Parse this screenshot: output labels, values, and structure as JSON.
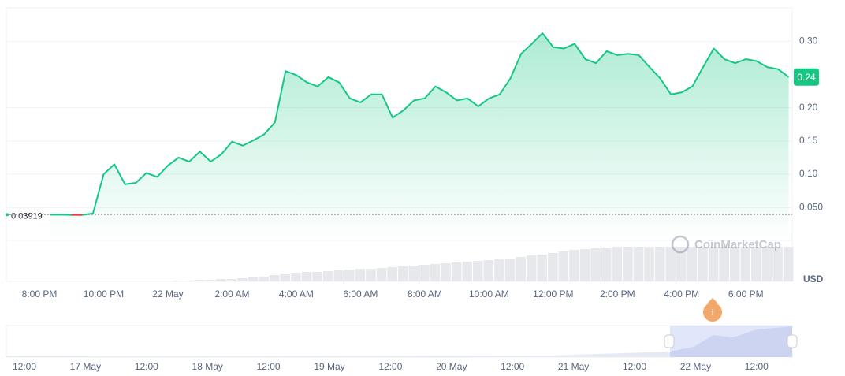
{
  "chart_data": {
    "type": "line",
    "categories": [
      "8:00 PM",
      null,
      null,
      null,
      null,
      null,
      "10:00 PM",
      null,
      null,
      null,
      null,
      null,
      "22 May",
      null,
      null,
      null,
      null,
      null,
      "2:00 AM",
      null,
      null,
      null,
      null,
      null,
      "4:00 AM",
      null,
      null,
      null,
      null,
      null,
      "6:00 AM",
      null,
      null,
      null,
      null,
      null,
      "8:00 AM",
      null,
      null,
      null,
      null,
      null,
      "10:00 AM",
      null,
      null,
      null,
      null,
      null,
      "12:00 PM",
      null,
      null,
      null,
      null,
      null,
      "2:00 PM",
      null,
      null,
      null,
      null,
      null,
      "4:00 PM",
      null,
      null,
      null,
      null,
      null,
      "6:00 PM",
      null,
      null,
      null,
      null
    ],
    "series": [
      {
        "color": "#16c784",
        "down_color": "#ea3943",
        "values": [
          null,
          0.0392,
          0.0392,
          0.039,
          0.039,
          0.041,
          0.1,
          0.115,
          0.085,
          0.087,
          0.102,
          0.096,
          0.113,
          0.125,
          0.119,
          0.134,
          0.119,
          0.13,
          0.149,
          0.143,
          0.151,
          0.16,
          0.178,
          0.255,
          0.249,
          0.238,
          0.232,
          0.246,
          0.238,
          0.214,
          0.208,
          0.22,
          0.22,
          0.185,
          0.196,
          0.211,
          0.214,
          0.232,
          0.223,
          0.211,
          0.214,
          0.202,
          0.214,
          0.22,
          0.244,
          0.281,
          0.296,
          0.312,
          0.291,
          0.289,
          0.296,
          0.273,
          0.267,
          0.285,
          0.279,
          0.281,
          0.279,
          0.261,
          0.244,
          0.22,
          0.223,
          0.232,
          0.261,
          0.289,
          0.273,
          0.267,
          0.273,
          0.27,
          0.261,
          0.258,
          0.246
        ]
      }
    ],
    "volume": [
      0,
      0,
      0,
      0,
      0,
      0,
      0,
      0,
      0,
      0,
      0,
      0,
      0,
      1,
      1,
      2,
      2,
      3,
      3,
      4,
      5,
      6,
      8,
      10,
      11,
      12,
      12,
      13,
      14,
      15,
      16,
      16,
      17,
      18,
      19,
      20,
      21,
      22,
      23,
      24,
      25,
      26,
      27,
      28,
      29,
      31,
      33,
      34,
      36,
      38,
      40,
      41,
      42,
      43,
      44,
      44,
      44,
      44,
      44,
      44,
      44,
      44,
      44,
      44,
      44,
      44,
      44,
      44,
      44,
      44,
      44
    ],
    "ylim": [
      0,
      0.35
    ],
    "yticks": [
      {
        "value": 0.05,
        "label": "0.050"
      },
      {
        "value": 0.1,
        "label": "0.10"
      },
      {
        "value": 0.15,
        "label": "0.15"
      },
      {
        "value": 0.2,
        "label": "0.20"
      },
      {
        "value": 0.3,
        "label": "0.30"
      }
    ],
    "grid": true,
    "baseline": 0.03919,
    "current_price": "0.24",
    "currency": "USD",
    "watermark": "CoinMarketCap",
    "marker": "i",
    "navigator": {
      "labels": [
        "12:00",
        "17 May",
        "12:00",
        "18 May",
        "12:00",
        "19 May",
        "12:00",
        "20 May",
        "12:00",
        "21 May",
        "12:00",
        "22 May",
        "12:00"
      ]
    }
  }
}
